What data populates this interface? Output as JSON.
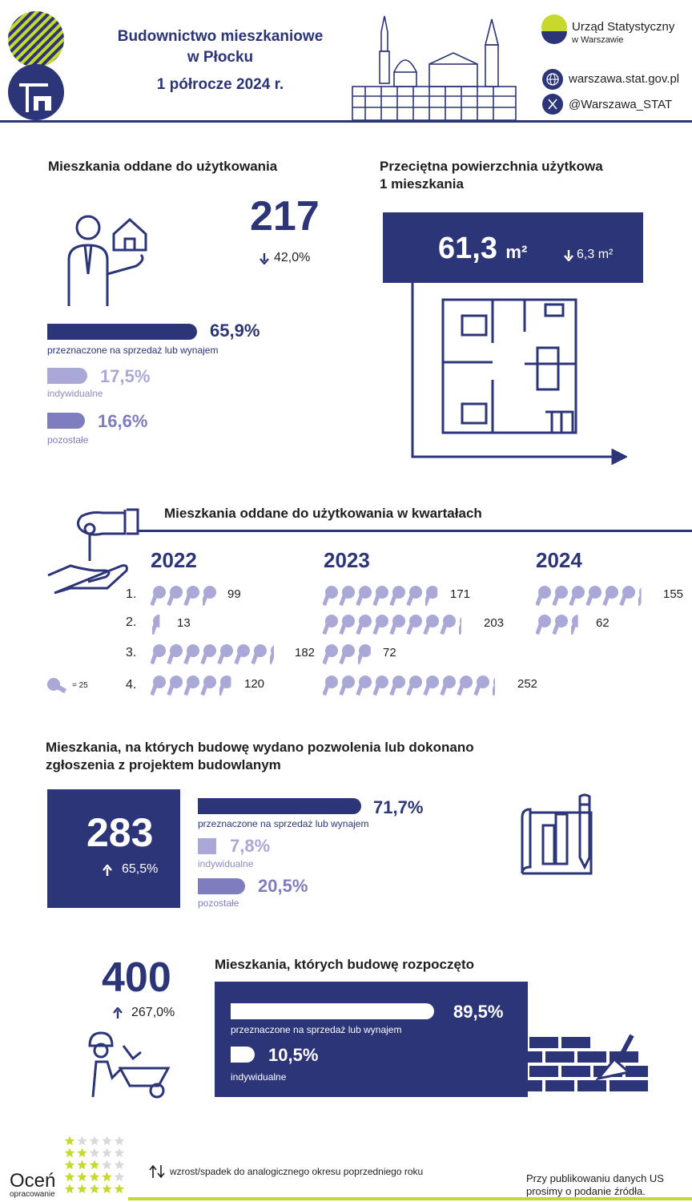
{
  "header": {
    "title_line1": "Budownictwo mieszkaniowe",
    "title_line2": "w Płocku",
    "title_line3": "1 półrocze 2024 r.",
    "org_name": "Urząd Statystyczny",
    "org_city": "w Warszawie",
    "website": "warszawa.stat.gov.pl",
    "twitter": "@Warszawa_STAT"
  },
  "colors": {
    "navy": "#2b3578",
    "lavender": "#a9a8d6",
    "purple": "#7e7dbf",
    "lime": "#c7d92e"
  },
  "completed": {
    "title": "Mieszkania oddane do użytkowania",
    "total": "217",
    "change": "42,0%",
    "bars": [
      {
        "pct": "65,9%",
        "value": 65.9,
        "label": "przeznaczone na sprzedaż lub wynajem"
      },
      {
        "pct": "17,5%",
        "value": 17.5,
        "label": "indywidualne"
      },
      {
        "pct": "16,6%",
        "value": 16.6,
        "label": "pozostałe"
      }
    ]
  },
  "area": {
    "title_line1": "Przeciętna powierzchnia użytkowa",
    "title_line2": "1 mieszkania",
    "value": "61,3",
    "unit": "m²",
    "change": "6,3 m²"
  },
  "quarters": {
    "title": "Mieszkania oddane do użytkowania w kwartałach",
    "legend": "= 25",
    "key_unit": 25,
    "years": [
      {
        "year": "2022",
        "quarters": [
          {
            "q": "1.",
            "value": 99
          },
          {
            "q": "2.",
            "value": 13
          },
          {
            "q": "3.",
            "value": 182
          },
          {
            "q": "4.",
            "value": 120
          }
        ]
      },
      {
        "year": "2023",
        "quarters": [
          {
            "value": 171
          },
          {
            "value": 203
          },
          {
            "value": 72
          },
          {
            "value": 252
          }
        ]
      },
      {
        "year": "2024",
        "quarters": [
          {
            "value": 155
          },
          {
            "value": 62
          }
        ]
      }
    ]
  },
  "permits": {
    "title_line1": "Mieszkania, na których budowę wydano pozwolenia lub dokonano",
    "title_line2": "zgłoszenia z projektem budowlanym",
    "total": "283",
    "change": "65,5%",
    "bars": [
      {
        "pct": "71,7%",
        "value": 71.7,
        "label": "przeznaczone na sprzedaż lub wynajem"
      },
      {
        "pct": "7,8%",
        "value": 7.8,
        "label": "indywidualne"
      },
      {
        "pct": "20,5%",
        "value": 20.5,
        "label": "pozostałe"
      }
    ]
  },
  "started": {
    "title": "Mieszkania, których budowę rozpoczęto",
    "total": "400",
    "change": "267,0%",
    "bars": [
      {
        "pct": "89,5%",
        "value": 89.5,
        "label": "przeznaczone na sprzedaż lub wynajem"
      },
      {
        "pct": "10,5%",
        "value": 10.5,
        "label": "indywidualne"
      }
    ]
  },
  "footer": {
    "rate_word": "Oceń",
    "rate_sub": "opracowanie",
    "legend": "wzrost/spadek do analogicznego okresu poprzedniego roku",
    "note_line1": "Przy publikowaniu danych US",
    "note_line2": "prosimy o podanie źródła."
  }
}
